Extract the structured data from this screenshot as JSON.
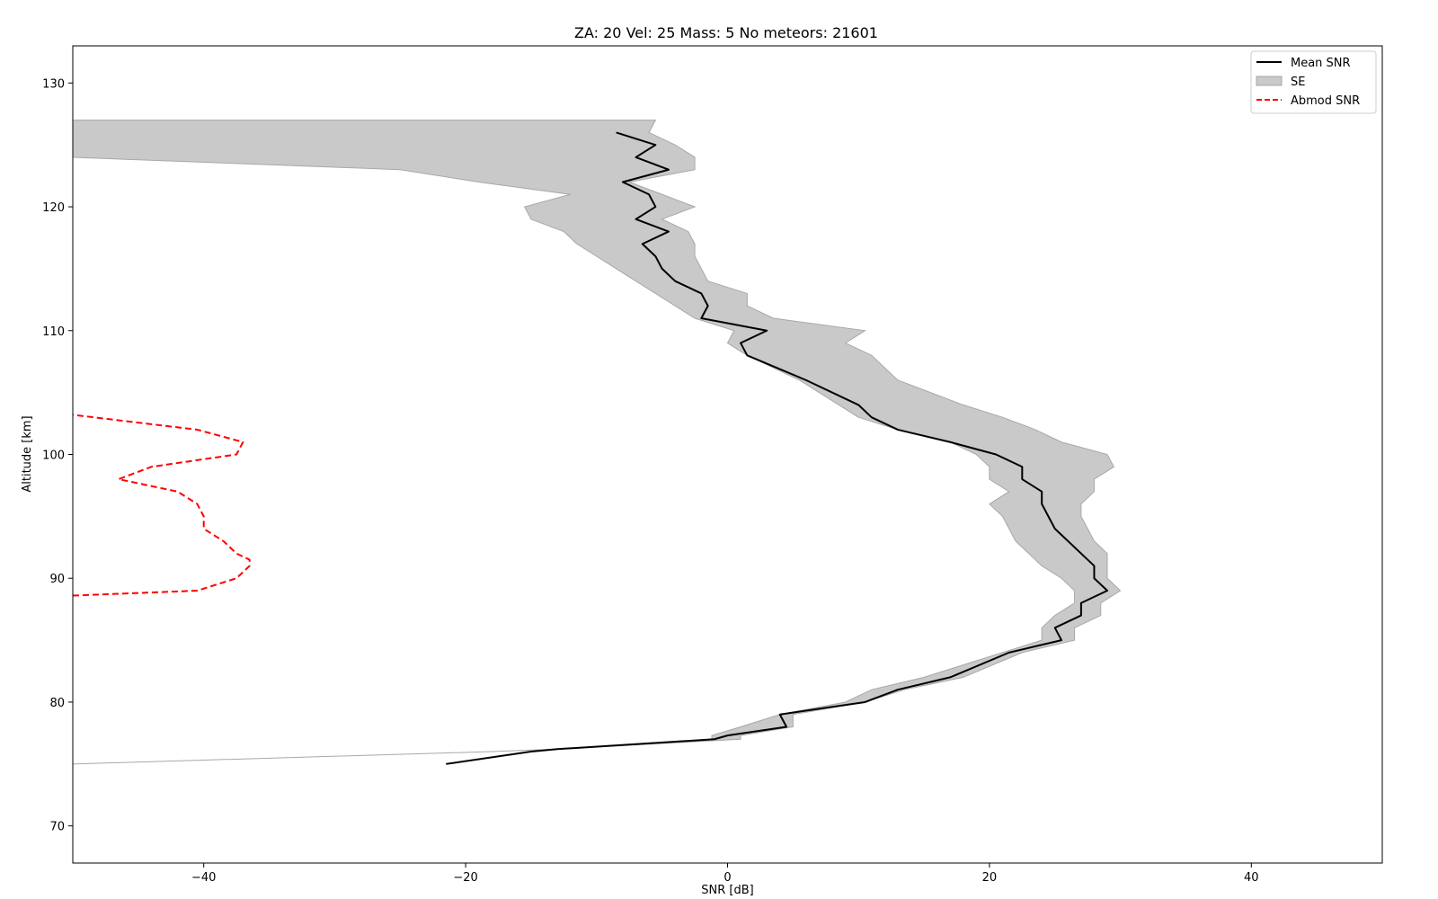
{
  "chart_data": {
    "type": "line",
    "title": "ZA: 20 Vel: 25 Mass: 5 No meteors: 21601",
    "xlabel": "SNR [dB]",
    "ylabel": "Altitude [km]",
    "xlim": [
      -50,
      50
    ],
    "ylim": [
      67,
      133
    ],
    "xticks": [
      -40,
      -20,
      0,
      20,
      40
    ],
    "yticks": [
      70,
      80,
      90,
      100,
      110,
      120,
      130
    ],
    "grid": false,
    "legend_position": "top-right",
    "colors": {
      "mean": "#000000",
      "se": "#c9c9c9",
      "se_edge": "#a8a8a8",
      "abmod": "#ff0000"
    },
    "series": [
      {
        "name": "Mean SNR",
        "style": "solid",
        "color": "#000000",
        "x": [
          -21.5,
          -15,
          -13,
          -1,
          0,
          4.5,
          4,
          10.5,
          13,
          17,
          21.5,
          25.5,
          25,
          27,
          27,
          29,
          28,
          28,
          27,
          26,
          25,
          24.5,
          24,
          24,
          22.5,
          22.5,
          20.5,
          17,
          13,
          11,
          10,
          6,
          1.5,
          1,
          3,
          -2,
          -1.5,
          -2,
          -4,
          -5,
          -5.5,
          -6.5,
          -4.5,
          -7,
          -5.5,
          -6,
          -8,
          -4.5,
          -7,
          -5.5,
          -8.5
        ],
        "y": [
          75,
          76,
          76.2,
          77,
          77.3,
          78,
          79,
          80,
          81,
          82,
          84,
          85,
          86,
          87,
          88,
          89,
          90,
          91,
          92,
          93,
          94,
          95,
          96,
          97,
          98,
          99,
          100,
          101,
          102,
          103,
          104,
          106,
          108,
          109,
          110,
          111,
          112,
          113,
          114,
          115,
          116,
          117,
          118,
          119,
          120,
          121,
          122,
          123,
          124,
          125,
          126
        ]
      },
      {
        "name": "SE",
        "style": "band",
        "color": "#c9c9c9",
        "y": [
          75,
          76,
          76.2,
          77,
          77.3,
          78,
          79,
          80,
          81,
          82,
          84,
          85,
          86,
          87,
          88,
          89,
          90,
          91,
          92,
          93,
          94,
          95,
          96,
          97,
          98,
          99,
          100,
          101,
          102,
          103,
          104,
          106,
          108,
          109,
          110,
          111,
          112,
          113,
          114,
          115,
          116,
          117,
          118,
          119,
          120,
          121,
          122,
          123,
          124,
          125,
          126,
          127
        ],
        "lower": [
          -50,
          -18,
          -13,
          -1.2,
          -1.2,
          1,
          4,
          9,
          11,
          15,
          21,
          24,
          24,
          25,
          26.5,
          26.5,
          25.5,
          24,
          23,
          22,
          21.5,
          21,
          20,
          21.5,
          20,
          20,
          19,
          17,
          13,
          10,
          8.5,
          5.5,
          1.5,
          0,
          0.5,
          -2.5,
          -4,
          -5.5,
          -7,
          -8.5,
          -10,
          -11.5,
          -12.5,
          -15,
          -15.5,
          -12,
          -19,
          -25,
          -50,
          -50,
          -50,
          -50
        ],
        "upper": [
          -50,
          -18,
          -13,
          1,
          1,
          5,
          5,
          10.5,
          13.5,
          18,
          22.5,
          26.5,
          26.5,
          28.5,
          28.5,
          30,
          29,
          29,
          29,
          28,
          27.5,
          27,
          27,
          28,
          28,
          29.5,
          29,
          25.5,
          23.5,
          21,
          18,
          13,
          11,
          9,
          10.5,
          3.5,
          1.5,
          1.5,
          -1.5,
          -2,
          -2.5,
          -2.5,
          -3,
          -5,
          -2.5,
          -5,
          -7.5,
          -2.5,
          -2.5,
          -4,
          -6,
          -5.5
        ]
      },
      {
        "name": "Abmod SNR",
        "style": "dashed",
        "color": "#ff0000",
        "x": [
          -50,
          -40.5,
          -37.5,
          -36.5,
          -36.5,
          -37.5,
          -38.5,
          -40,
          -40,
          -40.5,
          -42,
          -46.5,
          -44,
          -37.5,
          -37,
          -40.5,
          -50
        ],
        "y": [
          88.6,
          89,
          90,
          91,
          91.5,
          92,
          93,
          94,
          95,
          96,
          97,
          98,
          99,
          100,
          101,
          102,
          103.2
        ]
      }
    ],
    "legend": [
      {
        "label": "Mean SNR",
        "kind": "line",
        "color": "#000000"
      },
      {
        "label": "SE",
        "kind": "patch",
        "color": "#c9c9c9"
      },
      {
        "label": "Abmod SNR",
        "kind": "dashed",
        "color": "#ff0000"
      }
    ]
  }
}
